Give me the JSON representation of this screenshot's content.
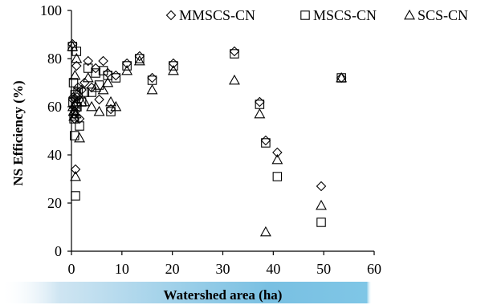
{
  "chart_data": {
    "type": "scatter",
    "title": "",
    "xlabel": "Watershed area (ha)",
    "ylabel": "NS Efficiency (%)",
    "xlim": [
      0,
      60
    ],
    "ylim": [
      0,
      100
    ],
    "x_ticks": [
      0,
      10,
      20,
      30,
      40,
      50,
      60
    ],
    "y_ticks": [
      0,
      20,
      40,
      60,
      80,
      100
    ],
    "grid": false,
    "legend_position": "top",
    "series": [
      {
        "name": "MMSCS-CN",
        "marker": "diamond",
        "x": [
          0.2,
          0.3,
          0.4,
          0.5,
          0.6,
          0.7,
          0.8,
          0.9,
          1.0,
          1.1,
          1.3,
          1.6,
          2.0,
          2.6,
          3.3,
          4.0,
          4.8,
          5.5,
          6.3,
          7.2,
          7.8,
          8.8,
          11.0,
          13.5,
          16.0,
          20.2,
          32.3,
          37.3,
          38.5,
          40.8,
          49.5,
          53.5
        ],
        "y": [
          86,
          63,
          64,
          57,
          55,
          58,
          34,
          61,
          77,
          64,
          68,
          55,
          67,
          70,
          79,
          68,
          76,
          63,
          79,
          74,
          59,
          73,
          78,
          81,
          72,
          78,
          83,
          62,
          46,
          41,
          27,
          72
        ]
      },
      {
        "name": "MSCS-CN",
        "marker": "square",
        "x": [
          0.2,
          0.3,
          0.4,
          0.5,
          0.6,
          0.7,
          0.8,
          0.9,
          1.0,
          1.1,
          1.3,
          1.6,
          2.0,
          2.6,
          3.3,
          4.0,
          4.8,
          5.5,
          6.3,
          7.2,
          7.8,
          8.8,
          11.0,
          13.5,
          16.0,
          20.2,
          32.3,
          37.3,
          38.5,
          40.8,
          49.5,
          53.5
        ],
        "y": [
          85,
          62,
          70,
          55,
          48,
          65,
          23,
          60,
          83,
          60,
          66,
          52,
          62,
          66,
          76,
          66,
          74,
          69,
          75,
          73,
          58,
          72,
          77,
          80,
          71,
          77,
          82,
          61,
          45,
          31,
          12,
          72
        ]
      },
      {
        "name": "SCS-CN",
        "marker": "triangle",
        "x": [
          0.2,
          0.3,
          0.4,
          0.5,
          0.6,
          0.7,
          0.8,
          0.9,
          1.0,
          1.1,
          1.3,
          1.6,
          2.0,
          2.6,
          3.3,
          4.0,
          4.8,
          5.5,
          6.3,
          7.2,
          7.8,
          8.8,
          11.0,
          13.5,
          16.0,
          20.2,
          32.3,
          37.3,
          38.5,
          40.8,
          49.5,
          53.5
        ],
        "y": [
          85,
          60,
          58,
          56,
          61,
          73,
          31,
          57,
          80,
          62,
          66,
          47,
          62,
          62,
          72,
          60,
          68,
          58,
          67,
          70,
          62,
          60,
          75,
          79,
          67,
          75,
          71,
          57,
          8,
          38,
          19,
          72
        ]
      }
    ]
  }
}
